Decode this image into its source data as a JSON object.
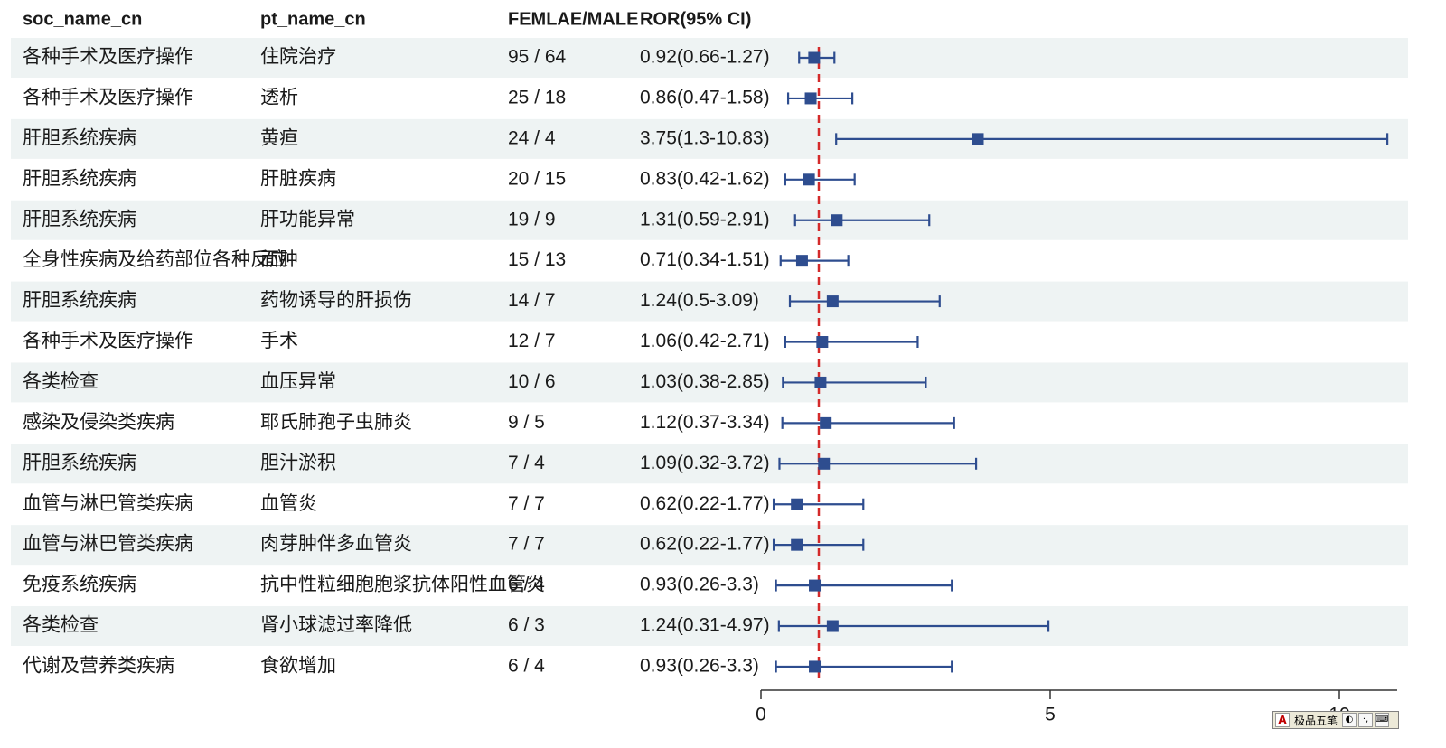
{
  "chart_data": {
    "type": "forest",
    "headers": {
      "soc": "soc_name_cn",
      "pt": "pt_name_cn",
      "counts": "FEMLAE/MALE",
      "ror": "ROR(95% CI)"
    },
    "rows": [
      {
        "soc": "各种手术及医疗操作",
        "pt": "住院治疗",
        "counts": "95 / 64",
        "ror_label": "0.92(0.66-1.27)",
        "ror": 0.92,
        "lower": 0.66,
        "upper": 1.27
      },
      {
        "soc": "各种手术及医疗操作",
        "pt": "透析",
        "counts": "25 / 18",
        "ror_label": "0.86(0.47-1.58)",
        "ror": 0.86,
        "lower": 0.47,
        "upper": 1.58
      },
      {
        "soc": "肝胆系统疾病",
        "pt": "黄疸",
        "counts": "24 / 4",
        "ror_label": "3.75(1.3-10.83)",
        "ror": 3.75,
        "lower": 1.3,
        "upper": 10.83
      },
      {
        "soc": "肝胆系统疾病",
        "pt": "肝脏疾病",
        "counts": "20 / 15",
        "ror_label": "0.83(0.42-1.62)",
        "ror": 0.83,
        "lower": 0.42,
        "upper": 1.62
      },
      {
        "soc": "肝胆系统疾病",
        "pt": "肝功能异常",
        "counts": "19 / 9",
        "ror_label": "1.31(0.59-2.91)",
        "ror": 1.31,
        "lower": 0.59,
        "upper": 2.91
      },
      {
        "soc": "全身性疾病及给药部位各种反应",
        "pt": "面肿",
        "counts": "15 / 13",
        "ror_label": "0.71(0.34-1.51)",
        "ror": 0.71,
        "lower": 0.34,
        "upper": 1.51
      },
      {
        "soc": "肝胆系统疾病",
        "pt": "药物诱导的肝损伤",
        "counts": "14 / 7",
        "ror_label": "1.24(0.5-3.09)",
        "ror": 1.24,
        "lower": 0.5,
        "upper": 3.09
      },
      {
        "soc": "各种手术及医疗操作",
        "pt": "手术",
        "counts": "12 / 7",
        "ror_label": "1.06(0.42-2.71)",
        "ror": 1.06,
        "lower": 0.42,
        "upper": 2.71
      },
      {
        "soc": "各类检查",
        "pt": "血压异常",
        "counts": "10 / 6",
        "ror_label": "1.03(0.38-2.85)",
        "ror": 1.03,
        "lower": 0.38,
        "upper": 2.85
      },
      {
        "soc": "感染及侵染类疾病",
        "pt": "耶氏肺孢子虫肺炎",
        "counts": "9 / 5",
        "ror_label": "1.12(0.37-3.34)",
        "ror": 1.12,
        "lower": 0.37,
        "upper": 3.34
      },
      {
        "soc": "肝胆系统疾病",
        "pt": "胆汁淤积",
        "counts": "7 / 4",
        "ror_label": "1.09(0.32-3.72)",
        "ror": 1.09,
        "lower": 0.32,
        "upper": 3.72
      },
      {
        "soc": "血管与淋巴管类疾病",
        "pt": "血管炎",
        "counts": "7 / 7",
        "ror_label": "0.62(0.22-1.77)",
        "ror": 0.62,
        "lower": 0.22,
        "upper": 1.77
      },
      {
        "soc": "血管与淋巴管类疾病",
        "pt": "肉芽肿伴多血管炎",
        "counts": "7 / 7",
        "ror_label": "0.62(0.22-1.77)",
        "ror": 0.62,
        "lower": 0.22,
        "upper": 1.77
      },
      {
        "soc": "免疫系统疾病",
        "pt": "抗中性粒细胞胞浆抗体阳性血管炎",
        "counts": "6 / 4",
        "ror_label": "0.93(0.26-3.3)",
        "ror": 0.93,
        "lower": 0.26,
        "upper": 3.3
      },
      {
        "soc": "各类检查",
        "pt": "肾小球滤过率降低",
        "counts": "6 / 3",
        "ror_label": "1.24(0.31-4.97)",
        "ror": 1.24,
        "lower": 0.31,
        "upper": 4.97
      },
      {
        "soc": "代谢及营养类疾病",
        "pt": "食欲增加",
        "counts": "6 / 4",
        "ror_label": "0.93(0.26-3.3)",
        "ror": 0.93,
        "lower": 0.26,
        "upper": 3.3
      }
    ],
    "xlim": [
      0,
      11
    ],
    "x_ticks": [
      0,
      5,
      10
    ],
    "x_tick_labels": [
      "0",
      "5",
      "10"
    ],
    "reference_line": 1,
    "reference_line_style": "dashed",
    "row_shading": "alternating",
    "colors": {
      "marker": "#2e4d8f",
      "ci_line": "#2e4d8f",
      "reference": "#d42a2a",
      "shade": "#eef3f3",
      "axis": "#333333"
    }
  },
  "ime_toolbar": {
    "logo": "A",
    "name": "极品五笔",
    "buttons": [
      "◐",
      "·,",
      "⌨"
    ]
  }
}
